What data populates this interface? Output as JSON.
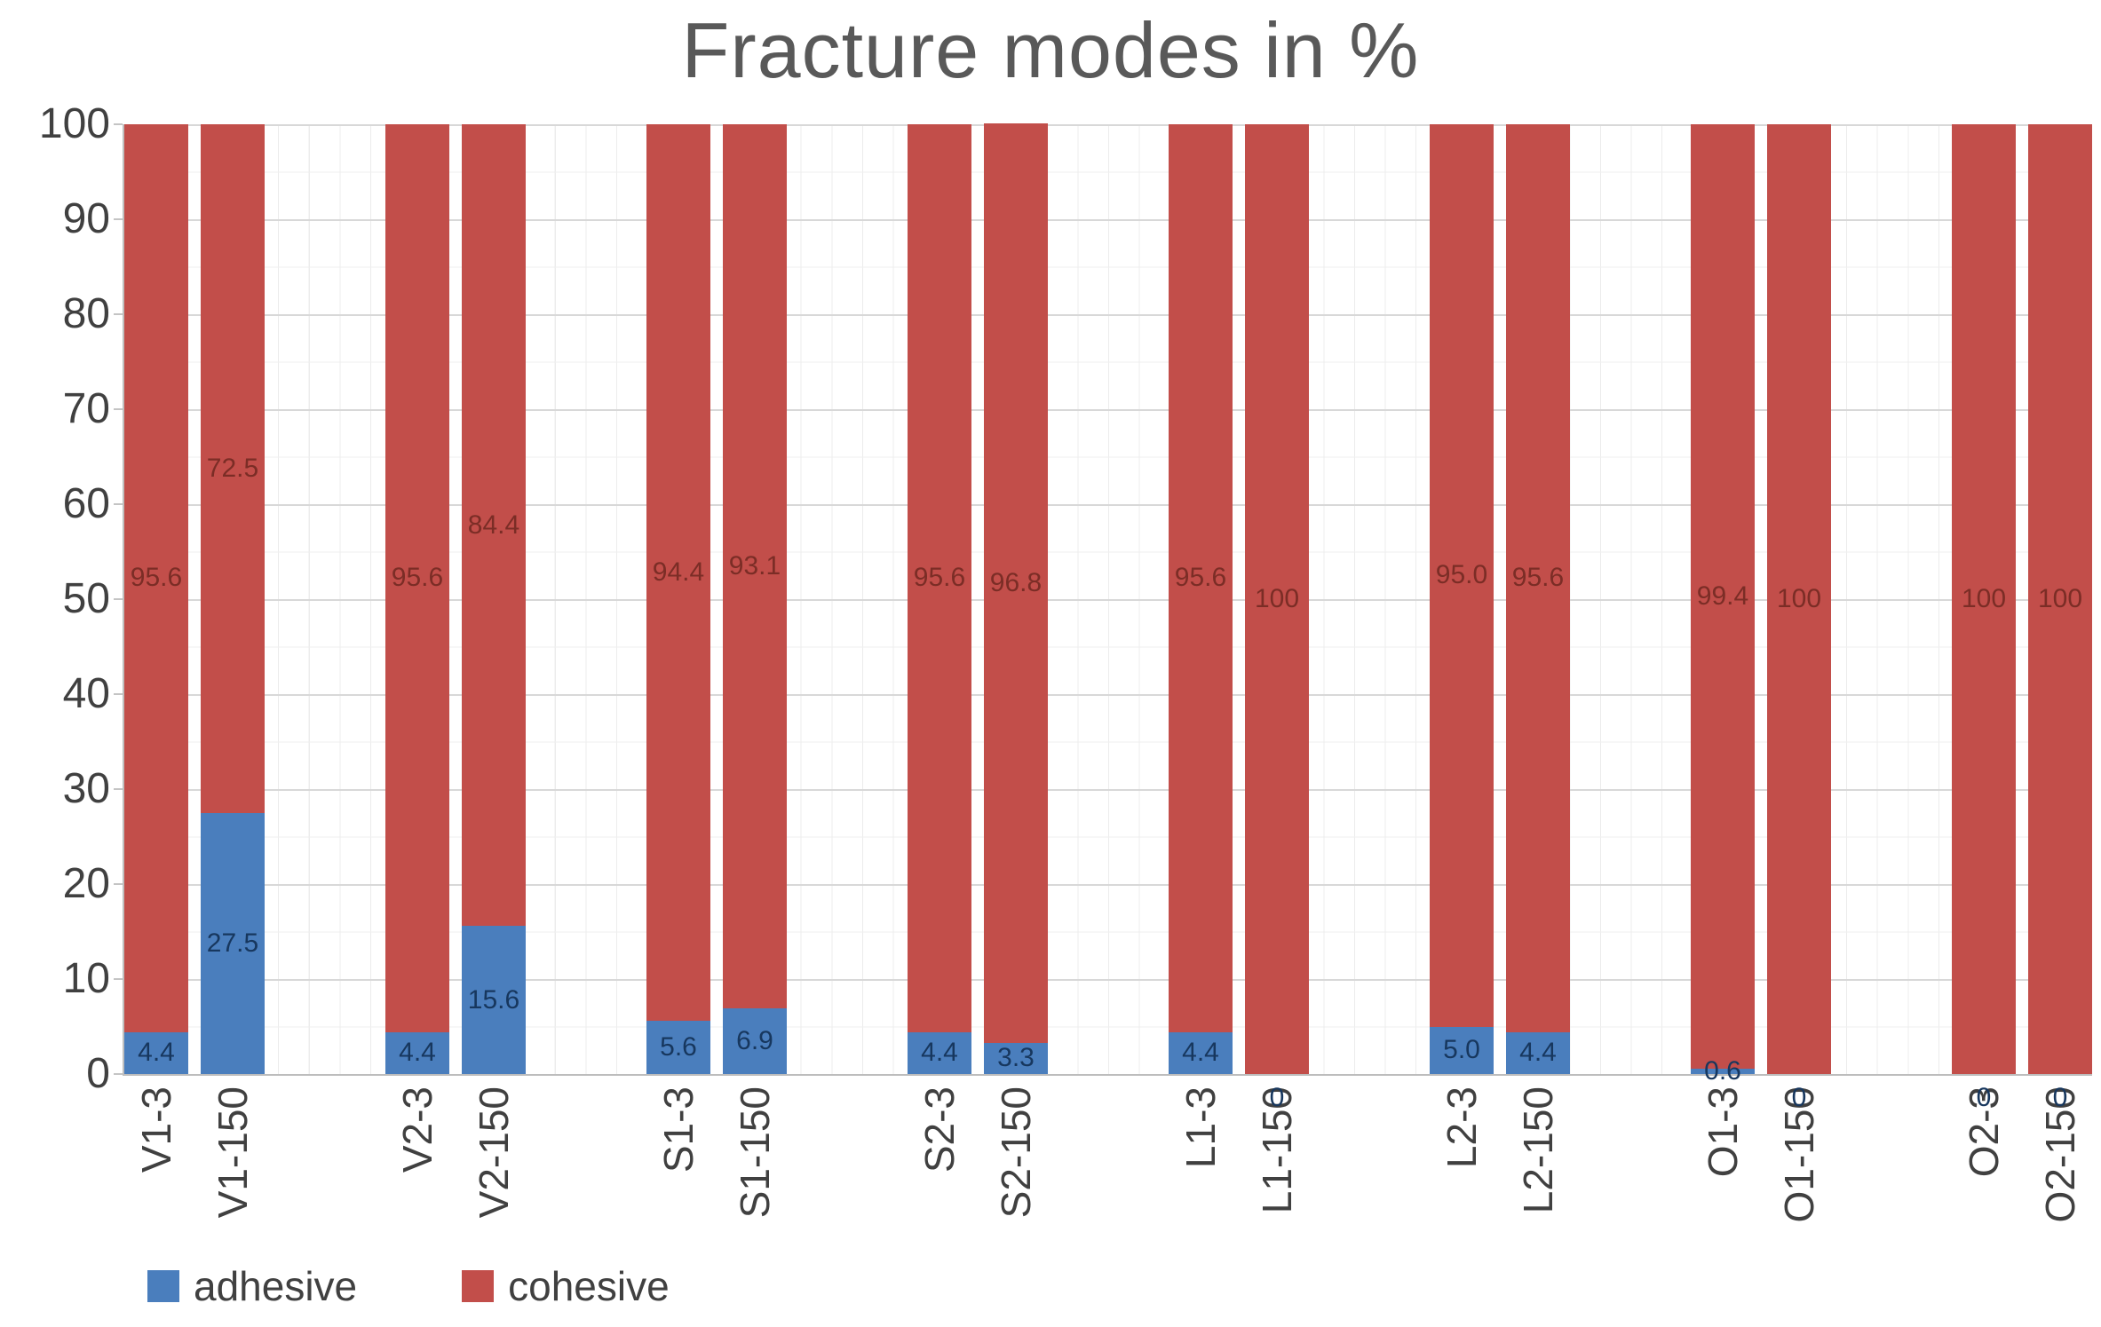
{
  "title": "Fracture modes in %",
  "legend": {
    "items": [
      {
        "label": "adhesive",
        "color": "#4A7EBD"
      },
      {
        "label": "cohesive",
        "color": "#C24E4A"
      }
    ]
  },
  "chart_data": {
    "type": "bar",
    "stacked": true,
    "title": "Fracture modes in %",
    "categories": [
      "V1-3",
      "V1-150",
      "V2-3",
      "V2-150",
      "S1-3",
      "S1-150",
      "S2-3",
      "S2-150",
      "L1-3",
      "L1-150",
      "L2-3",
      "L2-150",
      "O1-3",
      "O1-150",
      "O2-3",
      "O2-150"
    ],
    "series": [
      {
        "name": "adhesive",
        "color": "#4A7EBD",
        "label_color": "#17375E",
        "values": [
          4.4,
          27.5,
          4.4,
          15.6,
          5.6,
          6.9,
          4.4,
          3.3,
          4.4,
          0,
          5.0,
          4.4,
          0.6,
          0,
          0,
          0
        ],
        "labels": [
          "4.4",
          "27.5",
          "4.4",
          "15.6",
          "5.6",
          "6.9",
          "4.4",
          "3.3",
          "4.4",
          "0",
          "5.0",
          "4.4",
          "0.6",
          "0",
          "0",
          "0"
        ]
      },
      {
        "name": "cohesive",
        "color": "#C24E4A",
        "label_color": "#7B2D26",
        "values": [
          95.6,
          72.5,
          95.6,
          84.4,
          94.4,
          93.1,
          95.6,
          96.8,
          95.6,
          100,
          95.0,
          95.6,
          99.4,
          100,
          100,
          100
        ],
        "labels": [
          "95.6",
          "72.5",
          "95.6",
          "84.4",
          "94.4",
          "93.1",
          "95.6",
          "96.8",
          "95.6",
          "100",
          "95.0",
          "95.6",
          "99.4",
          "100",
          "100",
          "100"
        ]
      }
    ],
    "xlabel": "",
    "ylabel": "",
    "ylim": [
      0,
      100
    ],
    "yticks": [
      0,
      10,
      20,
      30,
      40,
      50,
      60,
      70,
      80,
      90,
      100
    ],
    "grid": {
      "horizontal_major_step": 10,
      "horizontal_minor_step": 5,
      "vertical_minor": true
    },
    "legend_position": "bottom-left",
    "bar_grouping": "pairs of 3 / 150 variants"
  }
}
